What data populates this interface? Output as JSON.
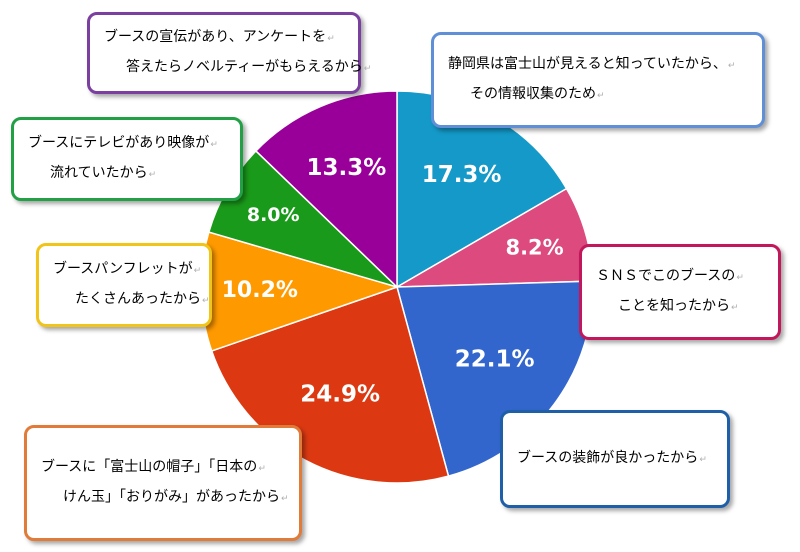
{
  "chart_data": {
    "type": "pie",
    "slices": [
      {
        "value": 17.3,
        "label": "17.3%",
        "color": "#1499c8",
        "lines": [
          "静岡県は富士山が見えると知っていたから、",
          "その情報収集のため"
        ],
        "border": "#5f8fd6"
      },
      {
        "value": 8.2,
        "label": "8.2%",
        "color": "#dc4a7e",
        "lines": [
          "ＳＮＳでこのブースの",
          "ことを知ったから"
        ],
        "border": "#c2185b"
      },
      {
        "value": 22.1,
        "label": "22.1%",
        "color": "#3366cc",
        "lines": [
          "ブースの装飾が良かったから"
        ],
        "border": "#1f5fa8"
      },
      {
        "value": 24.9,
        "label": "24.9%",
        "color": "#dc3912",
        "lines": [
          "ブースに「富士山の帽子」「日本の",
          "けん玉」「おりがみ」があったから"
        ],
        "border": "#e07b39"
      },
      {
        "value": 10.2,
        "label": "10.2%",
        "color": "#ff9900",
        "lines": [
          "ブースパンフレットが",
          "たくさんあったから"
        ],
        "border": "#f0c419"
      },
      {
        "value": 8.0,
        "label": "8.0%",
        "color": "#1a9a1a",
        "lines": [
          "ブースにテレビがあり映像が",
          "流れていたから"
        ],
        "border": "#22a046"
      },
      {
        "value": 13.3,
        "label": "13.3%",
        "color": "#990099",
        "lines": [
          "ブースの宣伝があり、アンケートを",
          "答えたらノベルティーがもらえるから"
        ],
        "border": "#7b3fa0"
      }
    ]
  }
}
